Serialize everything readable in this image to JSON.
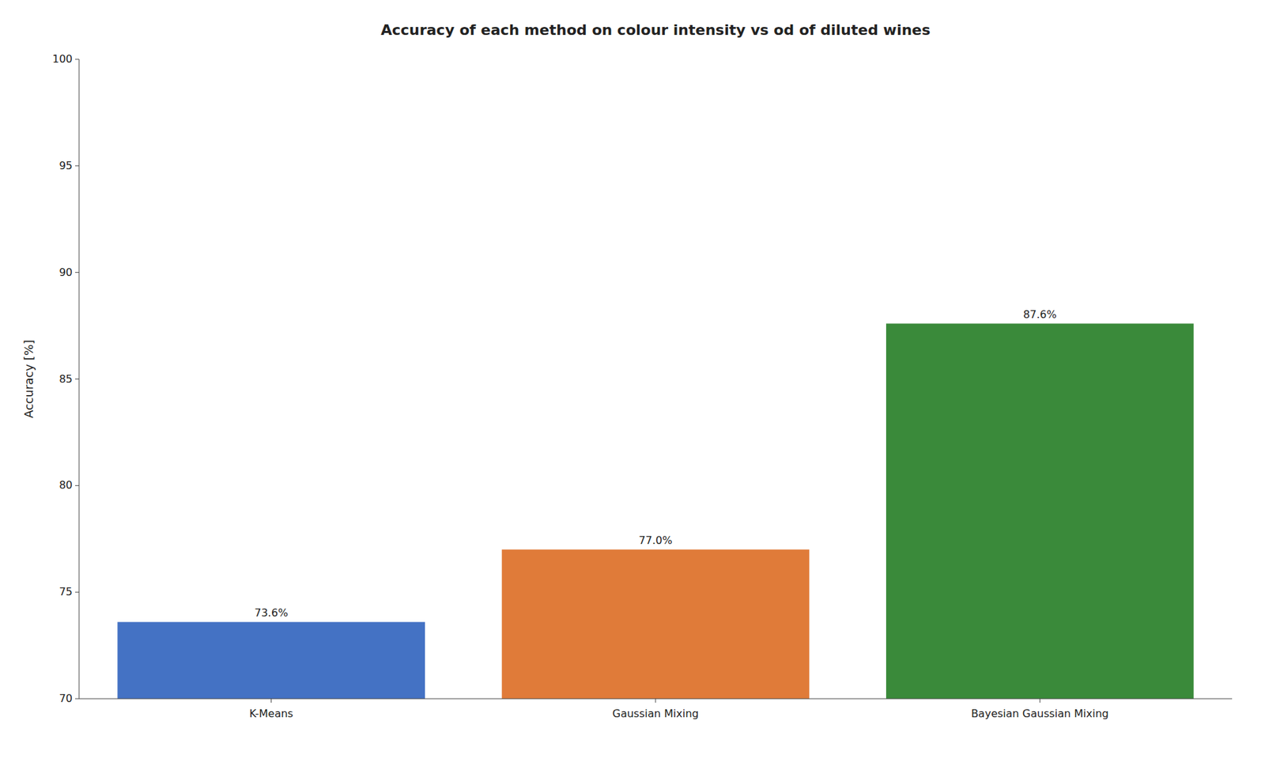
{
  "chart_data": {
    "type": "bar",
    "title": "Accuracy of each method on colour intensity vs od of diluted wines",
    "ylabel": "Accuracy [%]",
    "categories": [
      "K-Means",
      "Gaussian Mixing",
      "Bayesian Gaussian Mixing"
    ],
    "values": [
      73.6,
      77.0,
      87.6
    ],
    "value_labels": [
      "73.6%",
      "77.0%",
      "87.6%"
    ],
    "colors": [
      "#4472c4",
      "#e07b39",
      "#3a8a3a"
    ],
    "ylim": [
      70,
      100
    ],
    "yticks": [
      70,
      75,
      80,
      85,
      90,
      95,
      100
    ],
    "grid": false,
    "data_labels": true
  }
}
